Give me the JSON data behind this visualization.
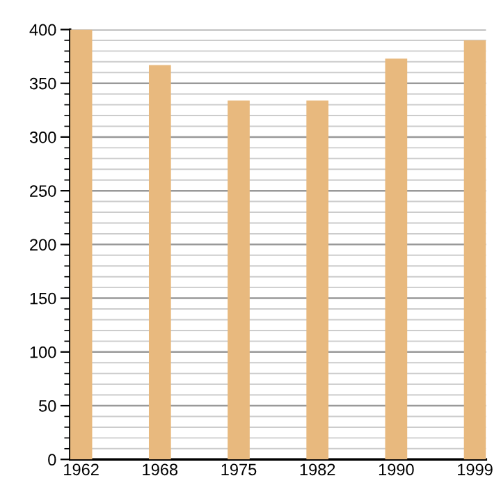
{
  "chart_data": {
    "type": "bar",
    "categories": [
      "1962",
      "1968",
      "1975",
      "1982",
      "1990",
      "1999"
    ],
    "values": [
      400,
      367,
      334,
      334,
      373,
      390
    ],
    "color": "#e8b97e",
    "ylim": [
      0,
      400
    ],
    "yticks": [
      0,
      50,
      100,
      150,
      200,
      250,
      300,
      350,
      400
    ],
    "grid": "y"
  }
}
